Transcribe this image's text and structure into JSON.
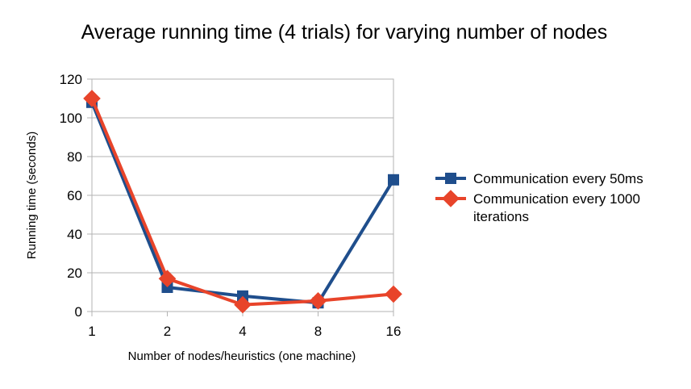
{
  "chart_data": {
    "type": "line",
    "title": "Average running time (4 trials) for varying number of nodes",
    "xlabel": "Number of nodes/heuristics (one machine)",
    "ylabel": "Running time (seconds)",
    "categories": [
      "1",
      "2",
      "4",
      "8",
      "16"
    ],
    "ylim": [
      0,
      120
    ],
    "yticks": [
      "0",
      "20",
      "40",
      "60",
      "80",
      "100",
      "120"
    ],
    "grid": true,
    "legend": "right",
    "series": [
      {
        "name": "Communication every 50ms",
        "values": [
          108,
          12.5,
          8,
          4.5,
          68
        ],
        "color": "#1f4e8c",
        "marker": "square"
      },
      {
        "name": "Communication every 1000 iterations",
        "legend_lines": [
          "Communication every 1000",
          "iterations"
        ],
        "values": [
          110,
          17,
          3.5,
          5.5,
          9
        ],
        "color": "#e8442a",
        "marker": "diamond"
      }
    ]
  }
}
